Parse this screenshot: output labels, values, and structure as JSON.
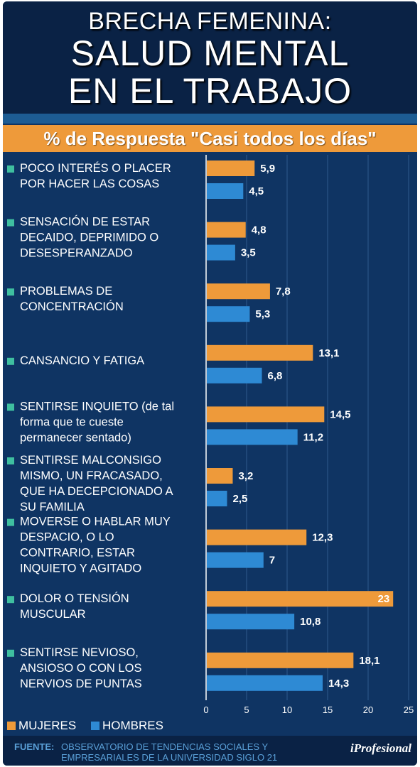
{
  "header": {
    "title_line1": "BRECHA FEMENINA:",
    "title_line2": "SALUD MENTAL",
    "title_line3": "EN EL TRABAJO",
    "subtitle": "% de Respuesta \"Casi todos los días\""
  },
  "colors": {
    "mujeres": "#ee9a3a",
    "hombres": "#2e8ad4",
    "bullet": "#3fbfa0",
    "background": "#0f3463"
  },
  "chart_data": {
    "type": "bar",
    "orientation": "horizontal",
    "title": "% de Respuesta \"Casi todos los días\"",
    "xlim": [
      0,
      25
    ],
    "xticks": [
      0,
      5,
      10,
      15,
      20,
      25
    ],
    "xtick_labels": [
      "0",
      "5",
      "10",
      "15",
      "20",
      "25"
    ],
    "grid": true,
    "legend_position": "bottom-left",
    "categories": [
      {
        "lines": [
          "POCO INTERÉS O PLACER",
          "POR HACER LAS COSAS"
        ]
      },
      {
        "lines": [
          "SENSACIÓN DE ESTAR",
          "DECAIDO, DEPRIMIDO O",
          "DESESPERANZADO"
        ]
      },
      {
        "lines": [
          "PROBLEMAS DE",
          "CONCENTRACIÓN"
        ]
      },
      {
        "lines": [
          "CANSANCIO Y FATIGA"
        ]
      },
      {
        "lines": [
          "SENTIRSE INQUIETO (de tal",
          "forma que te cueste",
          "permanecer sentado)"
        ]
      },
      {
        "lines": [
          "SENTIRSE MALCONSIGO",
          "MISMO, UN FRACASADO,",
          "QUE HA DECEPCIONADO A",
          "SU FAMILIA"
        ]
      },
      {
        "lines": [
          "MOVERSE O HABLAR MUY",
          "DESPACIO, O LO",
          "CONTRARIO, ESTAR",
          "INQUIETO Y AGITADO"
        ]
      },
      {
        "lines": [
          "DOLOR O TENSIÓN",
          "MUSCULAR"
        ]
      },
      {
        "lines": [
          "SENTIRSE NEVIOSO,",
          "ANSIOSO O CON LOS",
          "NERVIOS DE PUNTAS"
        ]
      }
    ],
    "series": [
      {
        "name": "MUJERES",
        "values": [
          5.9,
          4.8,
          7.8,
          13.1,
          14.5,
          3.2,
          12.3,
          23,
          18.1
        ],
        "labels": [
          "5,9",
          "4,8",
          "7,8",
          "13,1",
          "14,5",
          "3,2",
          "12,3",
          "23",
          "18,1"
        ]
      },
      {
        "name": "HOMBRES",
        "values": [
          4.5,
          3.5,
          5.3,
          6.8,
          11.2,
          2.5,
          7,
          10.8,
          14.3
        ],
        "labels": [
          "4,5",
          "3,5",
          "5,3",
          "6,8",
          "11,2",
          "2,5",
          "7",
          "10,8",
          "14,3"
        ]
      }
    ]
  },
  "legend": {
    "mujeres": "MUJERES",
    "hombres": "HOMBRES"
  },
  "footer": {
    "source_label": "FUENTE:",
    "source_text": "OBSERVATORIO DE TENDENCIAS SOCIALES Y EMPRESARIALES DE LA UNIVERSIDAD SIGLO 21",
    "brand": "iProfesional"
  }
}
